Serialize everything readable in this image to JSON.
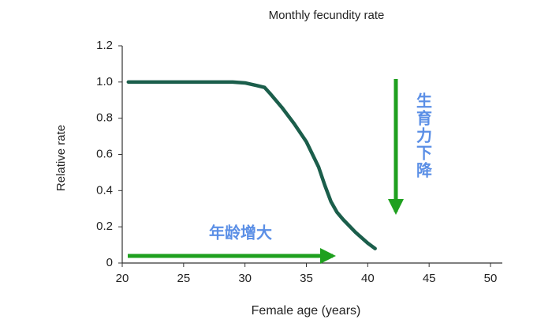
{
  "chart_data": {
    "type": "line",
    "title": "Monthly fecundity rate",
    "x_label": "Female age (years)",
    "y_label": "Relative rate",
    "series": [
      {
        "color": "#1b5e4b",
        "x": [
          20.5,
          25,
          29,
          30,
          31,
          31.6,
          32,
          33,
          34,
          35,
          36,
          36.5,
          37,
          37.5,
          38,
          39,
          40,
          40.6
        ],
        "values": [
          1.0,
          1.0,
          1.0,
          0.995,
          0.98,
          0.97,
          0.94,
          0.86,
          0.77,
          0.67,
          0.53,
          0.43,
          0.34,
          0.28,
          0.24,
          0.17,
          0.11,
          0.08
        ]
      }
    ],
    "xlim": [
      20,
      50
    ],
    "xticks": [
      20,
      25,
      30,
      35,
      40,
      45,
      50
    ],
    "ylim": [
      0,
      1.2
    ],
    "yticks": [
      0,
      0.2,
      0.4,
      0.6,
      0.8,
      {
        "value": 1.0,
        "label": "1.0"
      },
      1.2
    ],
    "annotations": [
      "年龄增大",
      "生育力下降"
    ]
  }
}
